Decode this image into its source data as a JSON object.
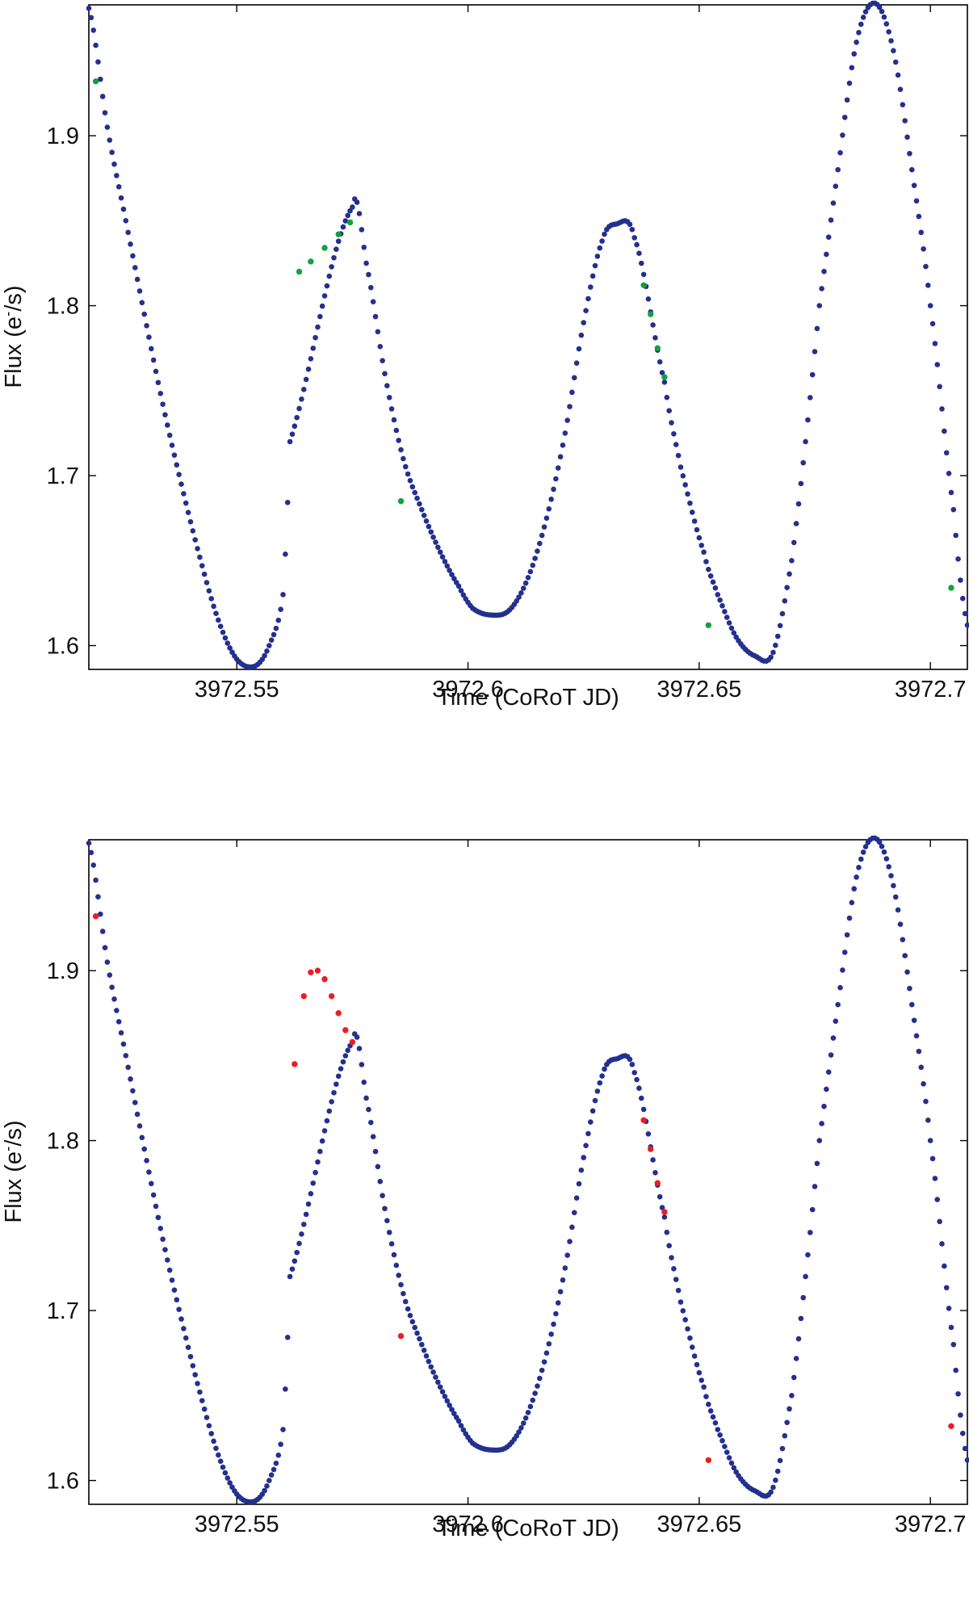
{
  "chart_data": [
    {
      "type": "scatter",
      "title": "",
      "xlabel": "Time (CoRoT JD)",
      "ylabel_main": "Flux (e",
      "ylabel_sup": "-",
      "ylabel_tail": "/s)",
      "xlim": [
        3972.518,
        3972.708
      ],
      "ylim": [
        1.586,
        1.977
      ],
      "xticks": [
        3972.55,
        3972.6,
        3972.65,
        3972.7
      ],
      "xtick_labels": [
        "3972.55",
        "3972.6",
        "3972.65",
        "3972.7"
      ],
      "yticks": [
        1.6,
        1.7,
        1.8,
        1.9
      ],
      "ytick_labels": [
        "1.6",
        "1.7",
        "1.8",
        "1.9"
      ],
      "grid": false,
      "legend": "none",
      "series": [
        {
          "color": "#23308f",
          "x": [
            3972.518,
            3972.522,
            3972.526,
            3972.53,
            3972.534,
            3972.538,
            3972.542,
            3972.546,
            3972.55,
            3972.554,
            3972.557,
            3972.56,
            3972.5615,
            3972.575,
            3972.578,
            3972.582,
            3972.586,
            3972.59,
            3972.594,
            3972.598,
            3972.601,
            3972.605,
            3972.609,
            3972.613,
            3972.617,
            3972.621,
            3972.625,
            3972.629,
            3972.632,
            3972.636,
            3972.6425,
            3972.646,
            3972.651,
            3972.654,
            3972.658,
            3972.662,
            3972.666,
            3972.67,
            3972.673,
            3972.676,
            3972.68,
            3972.684,
            3972.688,
            3972.692,
            3972.696,
            3972.7,
            3972.705,
            3972.708
          ],
          "y": [
            1.975,
            1.905,
            1.85,
            1.795,
            1.742,
            1.695,
            1.652,
            1.615,
            1.592,
            1.588,
            1.6,
            1.63,
            1.72,
            1.858,
            1.825,
            1.76,
            1.71,
            1.68,
            1.655,
            1.635,
            1.622,
            1.618,
            1.621,
            1.64,
            1.675,
            1.725,
            1.79,
            1.838,
            1.848,
            1.84,
            1.755,
            1.705,
            1.655,
            1.63,
            1.605,
            1.594,
            1.596,
            1.65,
            1.72,
            1.8,
            1.88,
            1.955,
            1.978,
            1.95,
            1.88,
            1.8,
            1.68,
            1.612
          ]
        },
        {
          "color": "#14a13d",
          "x": [
            3972.5195,
            3972.5635,
            3972.566,
            3972.569,
            3972.572,
            3972.5745,
            3972.5855,
            3972.638,
            3972.6395,
            3972.641,
            3972.6425,
            3972.652,
            3972.7045
          ],
          "y": [
            1.932,
            1.82,
            1.826,
            1.834,
            1.842,
            1.849,
            1.685,
            1.812,
            1.795,
            1.775,
            1.758,
            1.612,
            1.634
          ]
        }
      ]
    },
    {
      "type": "scatter",
      "title": "",
      "xlabel": "Time (CoRoT JD)",
      "ylabel_main": "Flux (e",
      "ylabel_sup": "-",
      "ylabel_tail": "/s)",
      "xlim": [
        3972.518,
        3972.708
      ],
      "ylim": [
        1.586,
        1.977
      ],
      "xticks": [
        3972.55,
        3972.6,
        3972.65,
        3972.7
      ],
      "xtick_labels": [
        "3972.55",
        "3972.6",
        "3972.65",
        "3972.7"
      ],
      "yticks": [
        1.6,
        1.7,
        1.8,
        1.9
      ],
      "ytick_labels": [
        "1.6",
        "1.7",
        "1.8",
        "1.9"
      ],
      "grid": false,
      "legend": "none",
      "series": [
        {
          "color": "#23308f",
          "x": [
            3972.518,
            3972.522,
            3972.526,
            3972.53,
            3972.534,
            3972.538,
            3972.542,
            3972.546,
            3972.55,
            3972.554,
            3972.557,
            3972.56,
            3972.5615,
            3972.575,
            3972.578,
            3972.582,
            3972.586,
            3972.59,
            3972.594,
            3972.598,
            3972.601,
            3972.605,
            3972.609,
            3972.613,
            3972.617,
            3972.621,
            3972.625,
            3972.629,
            3972.632,
            3972.636,
            3972.6425,
            3972.646,
            3972.651,
            3972.654,
            3972.658,
            3972.662,
            3972.666,
            3972.67,
            3972.673,
            3972.676,
            3972.68,
            3972.684,
            3972.688,
            3972.692,
            3972.696,
            3972.7,
            3972.705,
            3972.708
          ],
          "y": [
            1.975,
            1.905,
            1.85,
            1.795,
            1.742,
            1.695,
            1.652,
            1.615,
            1.592,
            1.588,
            1.6,
            1.63,
            1.72,
            1.858,
            1.825,
            1.76,
            1.71,
            1.68,
            1.655,
            1.635,
            1.622,
            1.618,
            1.621,
            1.64,
            1.675,
            1.725,
            1.79,
            1.838,
            1.848,
            1.84,
            1.755,
            1.705,
            1.655,
            1.63,
            1.605,
            1.594,
            1.596,
            1.65,
            1.72,
            1.8,
            1.88,
            1.955,
            1.978,
            1.95,
            1.88,
            1.8,
            1.68,
            1.612
          ]
        },
        {
          "color": "#ed1c24",
          "x": [
            3972.5195,
            3972.5625,
            3972.5645,
            3972.566,
            3972.5675,
            3972.569,
            3972.5705,
            3972.572,
            3972.5735,
            3972.575,
            3972.5855,
            3972.638,
            3972.6395,
            3972.641,
            3972.6425,
            3972.652,
            3972.7045
          ],
          "y": [
            1.932,
            1.845,
            1.885,
            1.899,
            1.9,
            1.895,
            1.885,
            1.875,
            1.865,
            1.858,
            1.685,
            1.812,
            1.795,
            1.775,
            1.758,
            1.612,
            1.632
          ]
        }
      ]
    }
  ]
}
